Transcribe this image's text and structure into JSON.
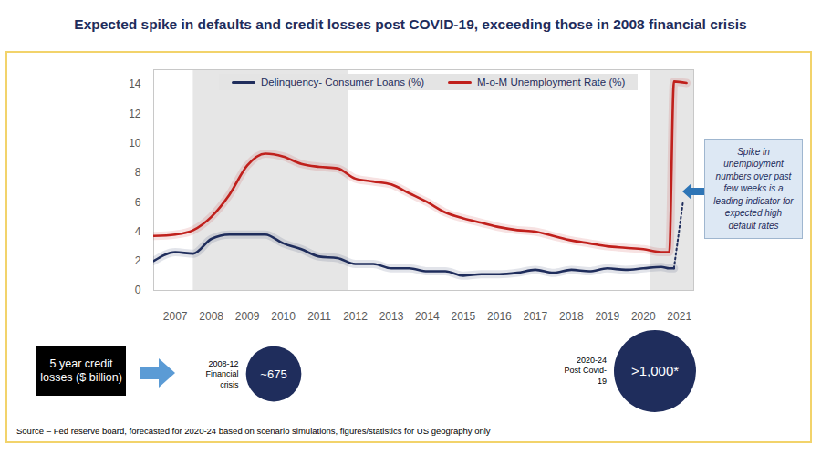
{
  "chart_data": {
    "type": "line",
    "title": "Expected spike in defaults and credit losses post COVID-19, exceeding those in 2008 financial crisis",
    "x": [
      2006.4,
      2007,
      2007.5,
      2008,
      2008.5,
      2009,
      2009.5,
      2010,
      2010.5,
      2011,
      2011.5,
      2012,
      2012.5,
      2013,
      2013.5,
      2014,
      2014.5,
      2015,
      2015.5,
      2016,
      2016.5,
      2017,
      2017.5,
      2018,
      2018.5,
      2019,
      2019.5,
      2020,
      2020.5,
      2020.72,
      2020.85,
      2021.2
    ],
    "xlim": [
      2006.4,
      2021.4
    ],
    "xticks": [
      2007,
      2008,
      2009,
      2010,
      2011,
      2012,
      2013,
      2014,
      2015,
      2016,
      2017,
      2018,
      2019,
      2020,
      2021
    ],
    "ylim": [
      0,
      15
    ],
    "yticks": [
      0,
      2,
      4,
      6,
      8,
      10,
      12,
      14
    ],
    "grid": false,
    "legend": "top",
    "series": [
      {
        "name": "Delinquency- Consumer Loans (%)",
        "color": "#1f2d5c",
        "values": [
          2.0,
          2.6,
          2.5,
          3.5,
          3.8,
          3.8,
          3.8,
          3.2,
          2.8,
          2.3,
          2.2,
          1.8,
          1.8,
          1.5,
          1.5,
          1.3,
          1.3,
          1.0,
          1.1,
          1.1,
          1.2,
          1.4,
          1.2,
          1.4,
          1.3,
          1.5,
          1.4,
          1.5,
          1.6,
          1.5,
          1.5,
          null
        ]
      },
      {
        "name": "M-o-M Unemployment Rate (%)",
        "color": "#c0201c",
        "values": [
          3.7,
          3.8,
          4.1,
          5.0,
          6.5,
          8.5,
          9.3,
          9.1,
          8.6,
          8.4,
          8.3,
          7.6,
          7.4,
          7.2,
          6.6,
          6.0,
          5.3,
          4.9,
          4.6,
          4.3,
          4.1,
          4.0,
          3.7,
          3.4,
          3.2,
          3.0,
          2.9,
          2.8,
          2.6,
          2.6,
          14.2,
          14.1
        ]
      }
    ],
    "projection": {
      "series": "Delinquency- Consumer Loans (%)",
      "x": [
        2020.85,
        2021.1
      ],
      "values": [
        1.5,
        6.0
      ],
      "line_style": "dotted"
    },
    "shaded_regions": [
      [
        2007.5,
        2011.8
      ],
      [
        2020.2,
        2021.4
      ]
    ],
    "annotations": [
      {
        "text": "Spike in unemployment numbers over past few weeks is a leading indicator for expected high default rates"
      }
    ],
    "credit_losses": {
      "label": "5 year credit losses ($ billion)",
      "periods": [
        "2008-12 Financial crisis",
        "2020-24 Post Covid-19"
      ],
      "values": [
        675,
        1000
      ],
      "value_labels": [
        "~675",
        ">1,000*"
      ]
    },
    "source": "Source – Fed reserve board, forecasted for 2020-24 based on scenario simulations, figures/statistics for US geography only"
  }
}
